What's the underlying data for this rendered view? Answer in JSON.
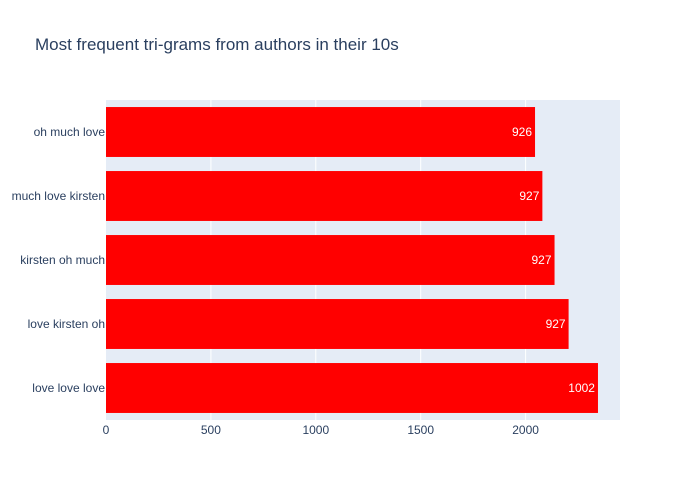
{
  "chart_data": {
    "type": "bar",
    "orientation": "horizontal",
    "title": "Most frequent tri-grams from authors in their 10s",
    "xlabel": "",
    "ylabel": "",
    "categories": [
      "love love love",
      "love kirsten oh",
      "kirsten oh much",
      "much love kirsten",
      "oh much love"
    ],
    "values": [
      2345,
      2205,
      2138,
      2080,
      2045
    ],
    "bar_labels": [
      "1002",
      "927",
      "927",
      "927",
      "926"
    ],
    "xlim": [
      0,
      2450
    ],
    "xticks": [
      0,
      500,
      1000,
      1500,
      2000
    ],
    "grid": true,
    "legend": "none",
    "colors": {
      "bar": "#ff0000",
      "plot_bg": "#e5ecf6",
      "grid": "#ffffff",
      "text": "#2a3f5f"
    }
  }
}
